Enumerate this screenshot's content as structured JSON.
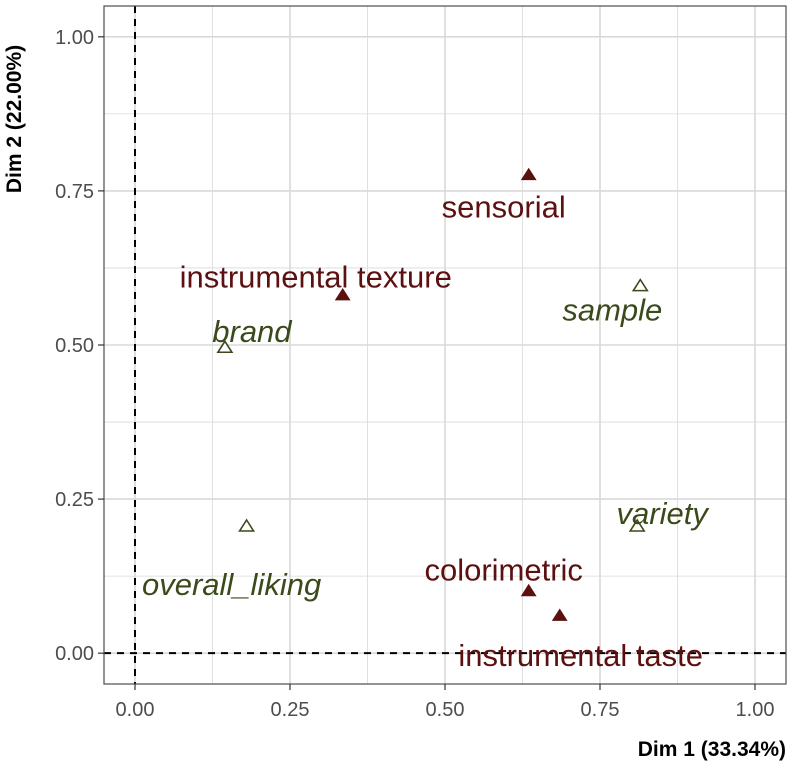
{
  "chart_data": {
    "type": "scatter",
    "title": "",
    "xlabel": "Dim 1 (33.34%)",
    "ylabel": "Dim 2 (22.00%)",
    "xlim": [
      -0.05,
      1.05
    ],
    "ylim": [
      -0.05,
      1.05
    ],
    "xticks": [
      0,
      0.25,
      0.5,
      0.75,
      1
    ],
    "yticks": [
      0,
      0.25,
      0.5,
      0.75,
      1
    ],
    "xtick_labels": [
      "0.00",
      "0.25",
      "0.50",
      "0.75",
      "1.00"
    ],
    "ytick_labels": [
      "0.00",
      "0.25",
      "0.50",
      "0.75",
      "1.00"
    ],
    "grid": true,
    "reference_lines": {
      "x": 0,
      "y": 0
    },
    "colors": {
      "active": "#5c1010",
      "supplementary": "#3a4a1a",
      "grid": "#d9d9d9",
      "panel_border": "#4d4d4d"
    },
    "series": [
      {
        "marker": "filled-triangle",
        "color": "#5c1010",
        "points": [
          {
            "label": "sensorial",
            "x": 0.635,
            "y": 0.775
          },
          {
            "label": "instrumental texture",
            "x": 0.335,
            "y": 0.58
          },
          {
            "label": "colorimetric",
            "x": 0.635,
            "y": 0.1
          },
          {
            "label": "instrumental taste",
            "x": 0.685,
            "y": 0.06
          }
        ]
      },
      {
        "marker": "open-triangle",
        "color": "#3a4a1a",
        "points": [
          {
            "label": "sample",
            "x": 0.815,
            "y": 0.595
          },
          {
            "label": "brand",
            "x": 0.145,
            "y": 0.495
          },
          {
            "label": "variety",
            "x": 0.81,
            "y": 0.205
          },
          {
            "label": "overall_liking",
            "x": 0.18,
            "y": 0.205
          }
        ]
      }
    ]
  }
}
